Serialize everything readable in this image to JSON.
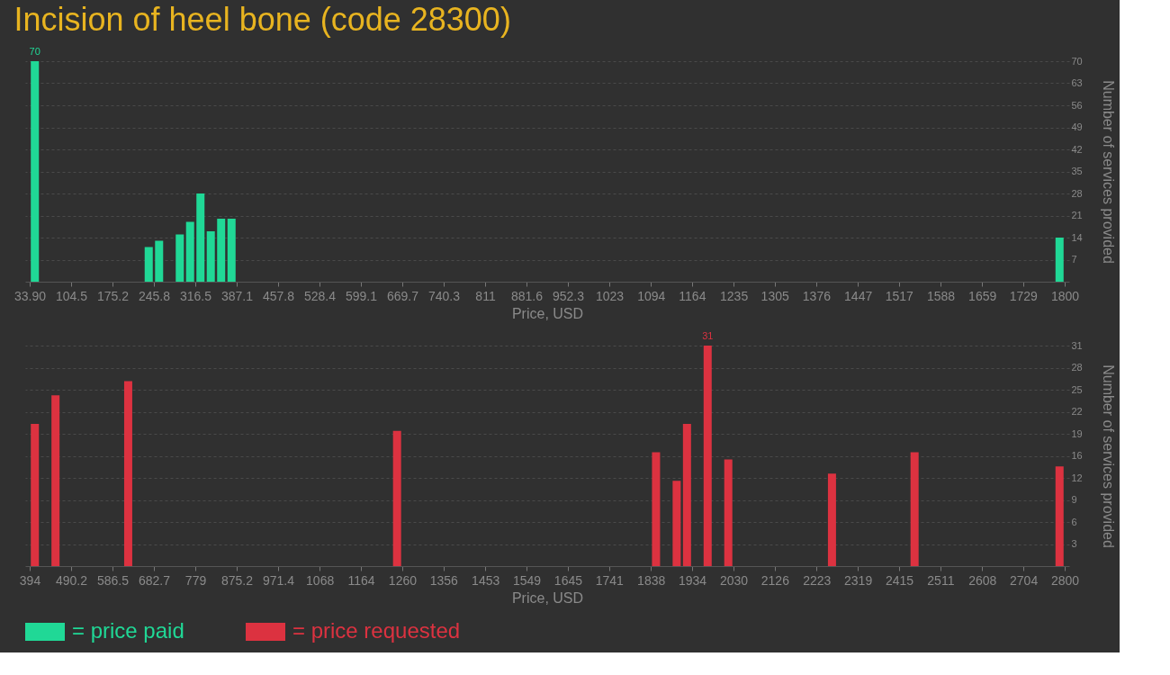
{
  "chart_data": [
    {
      "type": "bar",
      "title": "Incision of heel bone (code 28300)",
      "xlabel": "Price, USD",
      "ylabel": "Number of services provided",
      "x": [
        42.7,
        237.0,
        254.7,
        290.0,
        307.6,
        325.3,
        342.9,
        360.6,
        378.3,
        1791.2
      ],
      "series": [
        {
          "name": "= price paid",
          "color": "#20d896",
          "values": [
            70,
            11,
            13,
            15,
            19,
            28,
            16,
            20,
            20,
            14
          ],
          "value_labels": [
            "70",
            null,
            null,
            null,
            null,
            null,
            null,
            null,
            null,
            null
          ]
        }
      ],
      "xlim": [
        33.9,
        1800
      ],
      "xticks": [
        {
          "value": 33.9,
          "label": "33.90"
        },
        104.5,
        175.2,
        245.8,
        316.5,
        387.1,
        457.8,
        528.4,
        599.1,
        669.7,
        740.3,
        811,
        881.6,
        952.3,
        1023,
        1094,
        1164,
        1235,
        1305,
        1376,
        1447,
        1517,
        1588,
        1659,
        1729,
        1800
      ],
      "ylim": [
        0,
        70
      ],
      "yticks": [
        7,
        14,
        21,
        28,
        35,
        42,
        49,
        56,
        63,
        70
      ],
      "grid": "y",
      "legend": "bottom left"
    },
    {
      "type": "bar",
      "xlabel": "Price, USD",
      "ylabel": "Number of services provided",
      "x": [
        406,
        454,
        623,
        1248,
        1850,
        1898,
        1922,
        1970,
        2018,
        2259,
        2451,
        2788
      ],
      "series": [
        {
          "name": "= price requested",
          "color": "#dc3240",
          "values": [
            20,
            24,
            26,
            19,
            16,
            12,
            20,
            31,
            15,
            13,
            16,
            14
          ],
          "value_labels": [
            null,
            null,
            null,
            null,
            null,
            null,
            null,
            "31",
            null,
            null,
            null,
            null
          ]
        }
      ],
      "xlim": [
        394,
        2800
      ],
      "xticks": [
        394,
        490.2,
        586.5,
        682.7,
        779,
        875.2,
        971.4,
        1068,
        1164,
        1260,
        1356,
        1453,
        1549,
        1645,
        1741,
        1838,
        1934,
        2030,
        2126,
        2223,
        2319,
        2415,
        2511,
        2608,
        2704,
        2800
      ],
      "ylim": [
        0,
        31
      ],
      "yticks": [
        {
          "value": 3.1,
          "label": "3"
        },
        {
          "value": 6.2,
          "label": "6"
        },
        {
          "value": 9.3,
          "label": "9"
        },
        {
          "value": 12.4,
          "label": "12"
        },
        {
          "value": 15.5,
          "label": "16"
        },
        {
          "value": 18.6,
          "label": "19"
        },
        {
          "value": 21.7,
          "label": "22"
        },
        {
          "value": 24.8,
          "label": "25"
        },
        {
          "value": 27.9,
          "label": "28"
        },
        31
      ],
      "grid": "y",
      "legend": "bottom left"
    }
  ]
}
